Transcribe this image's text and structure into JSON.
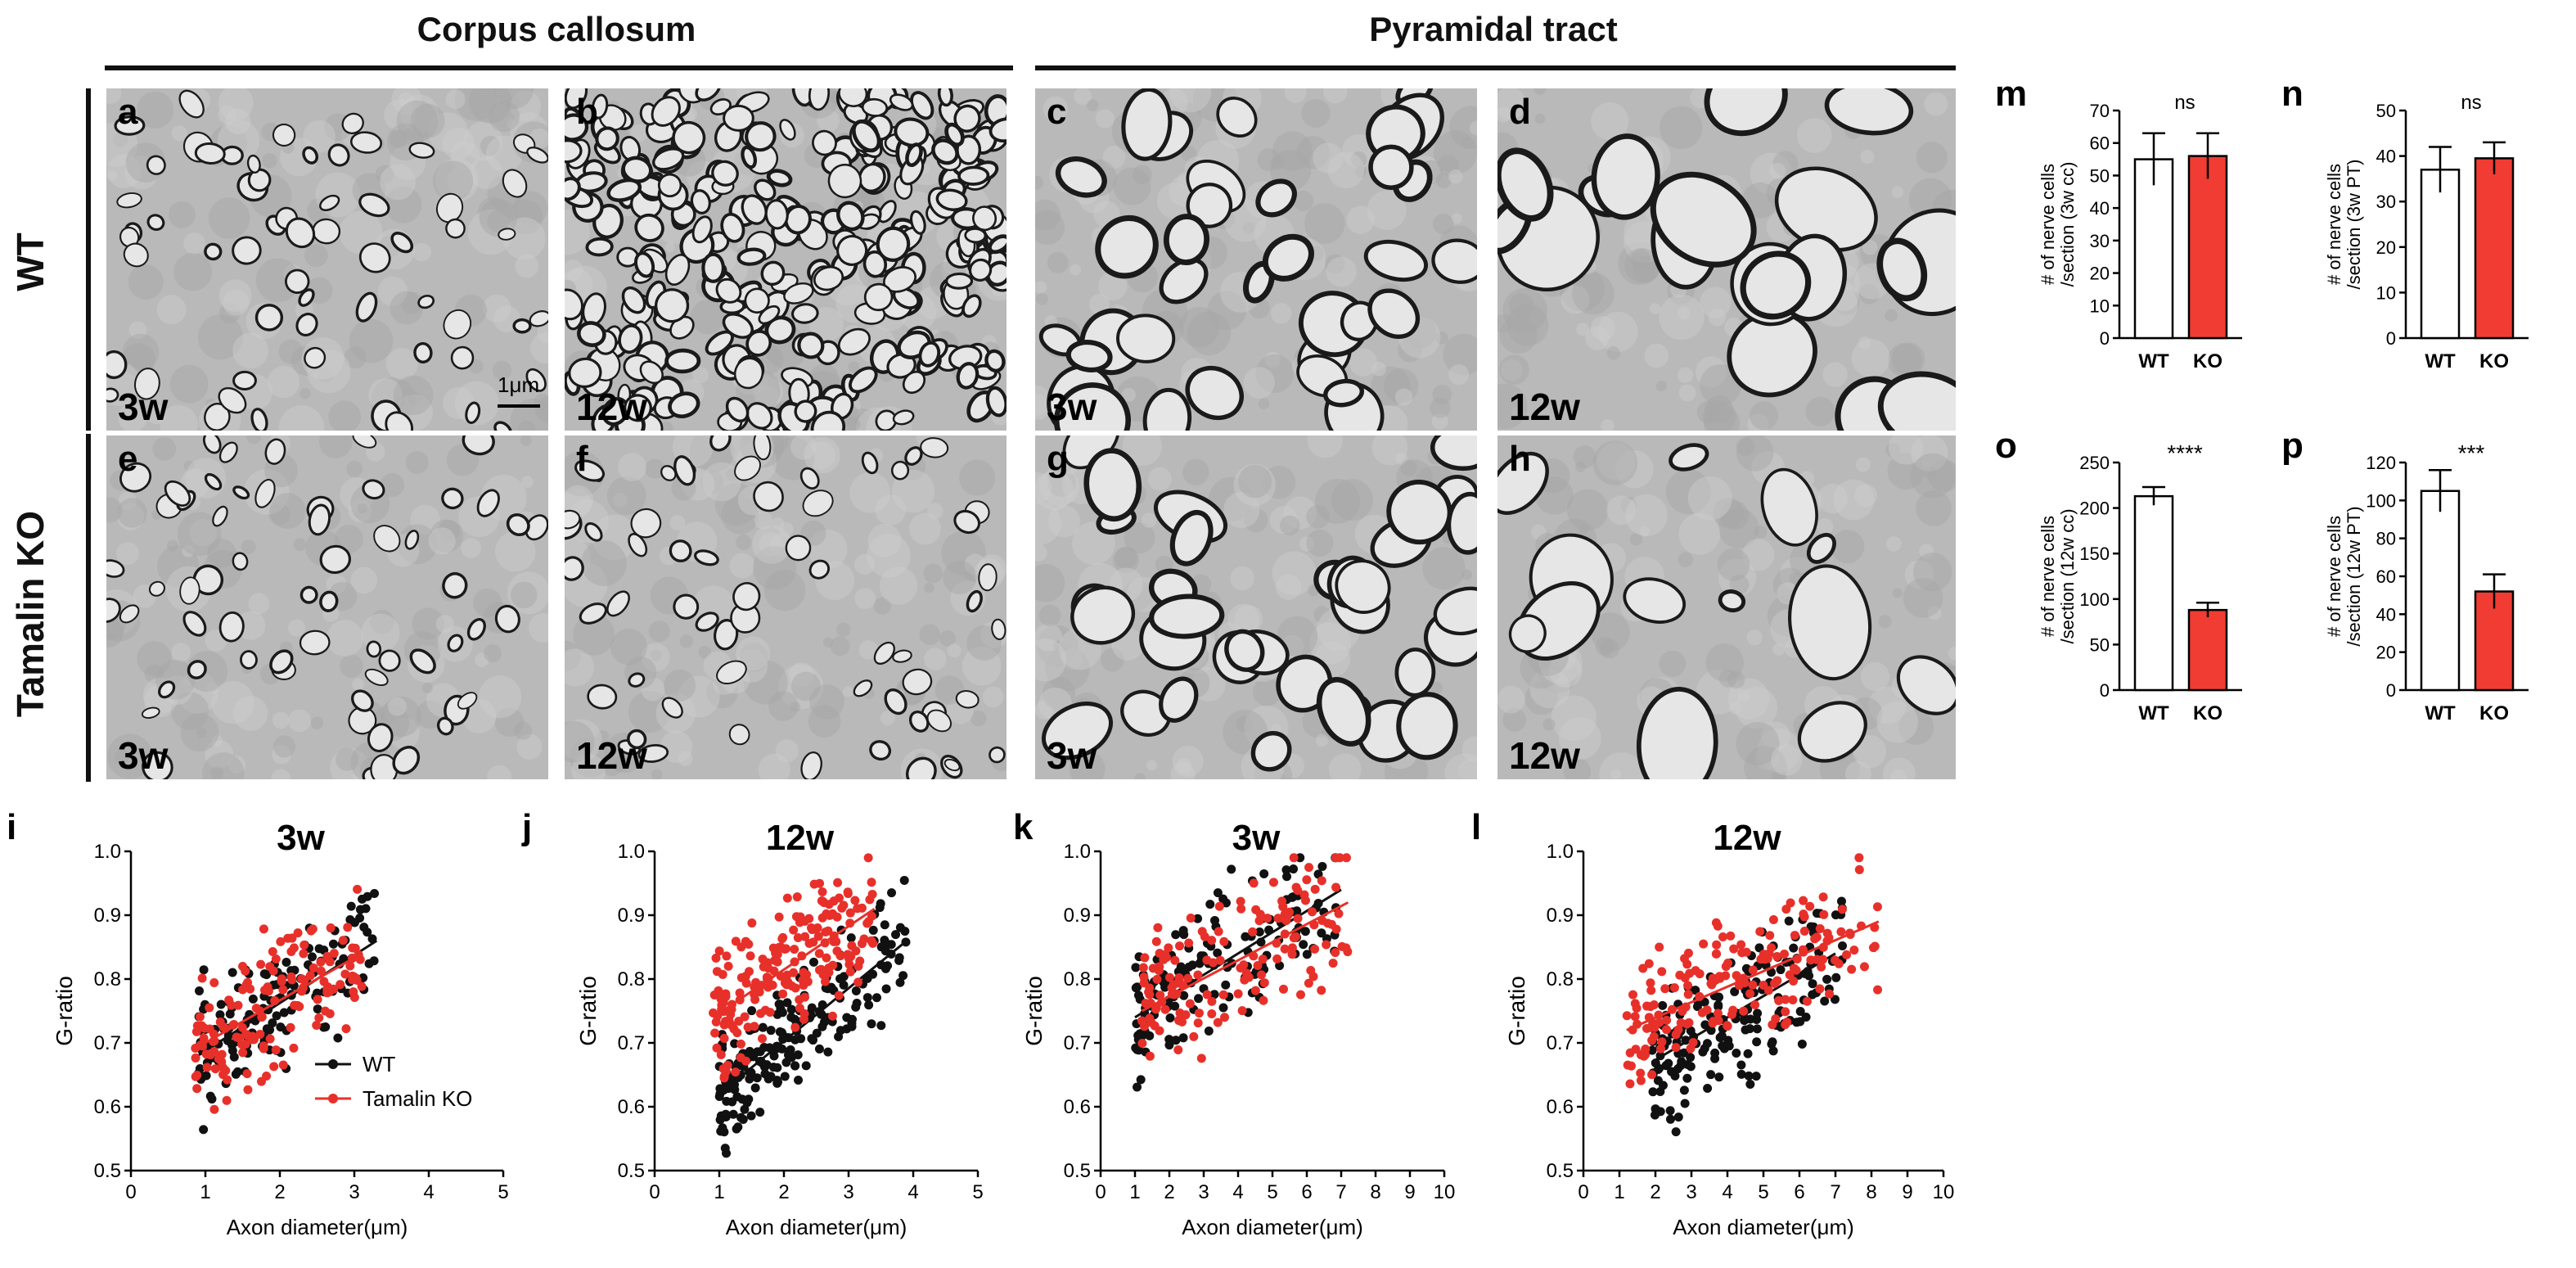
{
  "headers": {
    "left": "Corpus callosum",
    "right": "Pyramidal tract"
  },
  "row_labels": {
    "top": "WT",
    "bottom": "Tamalin KO"
  },
  "micrographs": [
    {
      "letter": "a",
      "age": "3w",
      "scale_label": "1μm",
      "density": "sparse-small",
      "row": "wt"
    },
    {
      "letter": "b",
      "age": "12w",
      "density": "dense-small",
      "row": "wt"
    },
    {
      "letter": "c",
      "age": "3w",
      "density": "medium-large",
      "row": "wt"
    },
    {
      "letter": "d",
      "age": "12w",
      "density": "sparse-large",
      "row": "wt"
    },
    {
      "letter": "e",
      "age": "3w",
      "density": "sparse-small",
      "row": "ko"
    },
    {
      "letter": "f",
      "age": "12w",
      "density": "sparse-small",
      "row": "ko"
    },
    {
      "letter": "g",
      "age": "3w",
      "density": "medium-large",
      "row": "ko"
    },
    {
      "letter": "h",
      "age": "12w",
      "density": "very-sparse-large",
      "row": "ko"
    }
  ],
  "colors": {
    "wt": "#111111",
    "ko": "#e8302a",
    "bar_wt": "#ffffff",
    "bar_ko": "#f03c32"
  },
  "chart_data": [
    {
      "id": "i",
      "type": "scatter",
      "title": "3w",
      "xlabel": "Axon diameter(μm)",
      "ylabel": "G-ratio",
      "xlim": [
        0,
        5
      ],
      "ylim": [
        0.5,
        1.0
      ],
      "xticks": [
        0,
        1,
        2,
        3,
        4,
        5
      ],
      "yticks": [
        0.5,
        0.6,
        0.7,
        0.8,
        0.9,
        1.0
      ],
      "legend": [
        {
          "name": "WT",
          "color": "#111111"
        },
        {
          "name": "Tamalin KO",
          "color": "#e8302a"
        }
      ],
      "series": [
        {
          "name": "WT",
          "color": "#111111",
          "x_range": [
            0.9,
            3.3
          ],
          "fit": [
            [
              0.9,
              0.68
            ],
            [
              3.3,
              0.86
            ]
          ],
          "n": 150,
          "spread": 0.045
        },
        {
          "name": "Tamalin KO",
          "color": "#e8302a",
          "x_range": [
            0.85,
            3.1
          ],
          "fit": [
            [
              0.85,
              0.69
            ],
            [
              3.1,
              0.84
            ]
          ],
          "n": 150,
          "spread": 0.05
        }
      ]
    },
    {
      "id": "j",
      "type": "scatter",
      "title": "12w",
      "xlabel": "Axon diameter(μm)",
      "ylabel": "G-ratio",
      "xlim": [
        0,
        5
      ],
      "ylim": [
        0.5,
        1.0
      ],
      "xticks": [
        0,
        1,
        2,
        3,
        4,
        5
      ],
      "yticks": [
        0.5,
        0.6,
        0.7,
        0.8,
        0.9,
        1.0
      ],
      "series": [
        {
          "name": "WT",
          "color": "#111111",
          "x_range": [
            1.0,
            3.9
          ],
          "fit": [
            [
              1.0,
              0.62
            ],
            [
              3.9,
              0.86
            ]
          ],
          "n": 200,
          "spread": 0.045
        },
        {
          "name": "Tamalin KO",
          "color": "#e8302a",
          "x_range": [
            0.9,
            3.4
          ],
          "fit": [
            [
              0.9,
              0.74
            ],
            [
              3.4,
              0.91
            ]
          ],
          "n": 200,
          "spread": 0.05
        }
      ]
    },
    {
      "id": "k",
      "type": "scatter",
      "title": "3w",
      "xlabel": "Axon diameter(μm)",
      "ylabel": "G-ratio",
      "xlim": [
        0,
        10
      ],
      "ylim": [
        0.5,
        1.0
      ],
      "xticks": [
        0,
        1,
        2,
        3,
        4,
        5,
        6,
        7,
        8,
        9,
        10
      ],
      "yticks": [
        0.5,
        0.6,
        0.7,
        0.8,
        0.9,
        1.0
      ],
      "series": [
        {
          "name": "WT",
          "color": "#111111",
          "x_range": [
            1.0,
            7.0
          ],
          "fit": [
            [
              1.0,
              0.74
            ],
            [
              7.0,
              0.94
            ]
          ],
          "n": 150,
          "spread": 0.05
        },
        {
          "name": "Tamalin KO",
          "color": "#e8302a",
          "x_range": [
            1.2,
            7.2
          ],
          "fit": [
            [
              1.2,
              0.75
            ],
            [
              7.2,
              0.92
            ]
          ],
          "n": 150,
          "spread": 0.055
        }
      ]
    },
    {
      "id": "l",
      "type": "scatter",
      "title": "12w",
      "xlabel": "Axon diameter(μm)",
      "ylabel": "G-ratio",
      "xlim": [
        0,
        10
      ],
      "ylim": [
        0.5,
        1.0
      ],
      "xticks": [
        0,
        1,
        2,
        3,
        4,
        5,
        6,
        7,
        8,
        9,
        10
      ],
      "yticks": [
        0.5,
        0.6,
        0.7,
        0.8,
        0.9,
        1.0
      ],
      "series": [
        {
          "name": "WT",
          "color": "#111111",
          "x_range": [
            1.9,
            7.2
          ],
          "fit": [
            [
              1.9,
              0.67
            ],
            [
              7.0,
              0.84
            ]
          ],
          "n": 180,
          "spread": 0.055
        },
        {
          "name": "Tamalin KO",
          "color": "#e8302a",
          "x_range": [
            1.2,
            8.2
          ],
          "fit": [
            [
              1.2,
              0.72
            ],
            [
              8.2,
              0.89
            ]
          ],
          "n": 180,
          "spread": 0.05
        }
      ]
    },
    {
      "id": "m",
      "type": "bar",
      "categories": [
        "WT",
        "KO"
      ],
      "values": [
        55,
        56
      ],
      "errors": [
        8,
        7
      ],
      "ylabel": "# of nerve cells /section (3w cc)",
      "ylim": [
        0,
        70
      ],
      "yticks": [
        0,
        10,
        20,
        30,
        40,
        50,
        60,
        70
      ],
      "significance": "ns"
    },
    {
      "id": "n",
      "type": "bar",
      "categories": [
        "WT",
        "KO"
      ],
      "values": [
        37,
        39.5
      ],
      "errors": [
        5,
        3.5
      ],
      "ylabel": "# of nerve cells /section (3w PT)",
      "ylim": [
        0,
        50
      ],
      "yticks": [
        0,
        10,
        20,
        30,
        40,
        50
      ],
      "significance": "ns"
    },
    {
      "id": "o",
      "type": "bar",
      "categories": [
        "WT",
        "KO"
      ],
      "values": [
        213,
        88
      ],
      "errors": [
        10,
        8
      ],
      "ylabel": "# of nerve cells /section (12w cc)",
      "ylim": [
        0,
        250
      ],
      "yticks": [
        0,
        50,
        100,
        150,
        200,
        250
      ],
      "significance": "****"
    },
    {
      "id": "p",
      "type": "bar",
      "categories": [
        "WT",
        "KO"
      ],
      "values": [
        105,
        52
      ],
      "errors": [
        11,
        9
      ],
      "ylabel": "# of nerve cells /section (12w PT)",
      "ylim": [
        0,
        120
      ],
      "yticks": [
        0,
        20,
        40,
        60,
        80,
        100,
        120
      ],
      "significance": "***"
    }
  ]
}
